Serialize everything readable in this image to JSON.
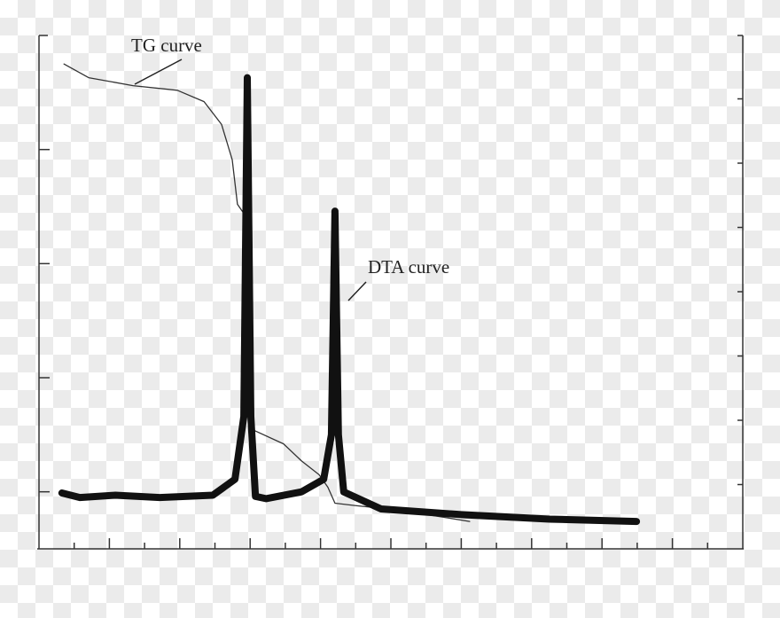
{
  "chart_data": {
    "type": "line",
    "title": "",
    "xlabel": "",
    "ylabel": "",
    "xlim": [
      0,
      20
    ],
    "ylim": [
      0,
      4.5
    ],
    "grid": false,
    "left_ticks": [
      0.5,
      1.5,
      2.5,
      3.5
    ],
    "right_tick_count": 8,
    "x_tick_count": 20,
    "series": [
      {
        "name": "TG curve",
        "color": "#333333",
        "style": "thin",
        "x": [
          0.71,
          1.41,
          2.67,
          3.93,
          4.69,
          5.19,
          5.49,
          5.64,
          5.82,
          5.92,
          5.99,
          6.1,
          6.95,
          7.46,
          7.96,
          8.21,
          8.41,
          8.97,
          10.23,
          12.24
        ],
        "y": [
          4.25,
          4.13,
          4.06,
          4.02,
          3.92,
          3.72,
          3.41,
          3.02,
          2.94,
          2.48,
          1.08,
          1.04,
          0.92,
          0.77,
          0.65,
          0.54,
          0.4,
          0.38,
          0.34,
          0.24
        ]
      },
      {
        "name": "DTA curve",
        "color": "#111111",
        "style": "thick",
        "x": [
          0.65,
          1.16,
          2.17,
          3.43,
          4.94,
          5.57,
          5.82,
          5.92,
          6.02,
          6.15,
          6.45,
          7.46,
          8.09,
          8.31,
          8.41,
          8.51,
          8.66,
          9.72,
          11.99,
          14.51,
          16.98
        ],
        "y": [
          0.49,
          0.45,
          0.47,
          0.45,
          0.47,
          0.61,
          1.16,
          4.13,
          1.16,
          0.46,
          0.44,
          0.5,
          0.61,
          1.0,
          2.96,
          1.0,
          0.5,
          0.35,
          0.3,
          0.26,
          0.24
        ]
      }
    ],
    "annotations": {
      "tg": "TG curve",
      "dta": "DTA curve"
    }
  }
}
